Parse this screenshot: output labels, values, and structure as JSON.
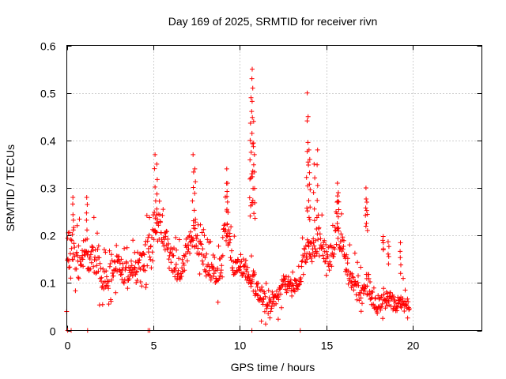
{
  "chart_data": {
    "type": "scatter",
    "title": "Day 169 of 2025, SRMTID for receiver rivn",
    "xlabel": "GPS time / hours",
    "ylabel": "SRMTID / TECUs",
    "xlim": [
      0,
      24
    ],
    "ylim": [
      0,
      0.6
    ],
    "xticks": [
      0,
      5,
      10,
      15,
      20
    ],
    "xtick_labels": [
      "0",
      "5",
      "10",
      "15",
      "20"
    ],
    "yticks": [
      0,
      0.1,
      0.2,
      0.3,
      0.4,
      0.5,
      0.6
    ],
    "ytick_labels": [
      "0",
      "0.1",
      "0.2",
      "0.3",
      "0.4",
      "0.5",
      "0.6"
    ],
    "grid": true,
    "marker": "+",
    "color": "#ff0000",
    "series": [
      {
        "name": "SRMTID",
        "envelope": [
          [
            0.0,
            0.09,
            0.16
          ],
          [
            0.3,
            0.09,
            0.24
          ],
          [
            0.5,
            0.1,
            0.22
          ],
          [
            0.8,
            0.11,
            0.2
          ],
          [
            1.0,
            0.13,
            0.21
          ],
          [
            1.3,
            0.1,
            0.16
          ],
          [
            1.5,
            0.11,
            0.2
          ],
          [
            1.8,
            0.07,
            0.2
          ],
          [
            2.0,
            0.08,
            0.14
          ],
          [
            2.3,
            0.08,
            0.14
          ],
          [
            2.6,
            0.09,
            0.15
          ],
          [
            2.9,
            0.11,
            0.17
          ],
          [
            3.2,
            0.1,
            0.16
          ],
          [
            3.5,
            0.09,
            0.15
          ],
          [
            3.8,
            0.11,
            0.16
          ],
          [
            4.0,
            0.09,
            0.15
          ],
          [
            4.3,
            0.1,
            0.18
          ],
          [
            4.6,
            0.11,
            0.21
          ],
          [
            4.8,
            0.13,
            0.22
          ],
          [
            5.0,
            0.17,
            0.26
          ],
          [
            5.2,
            0.18,
            0.26
          ],
          [
            5.5,
            0.17,
            0.24
          ],
          [
            5.8,
            0.15,
            0.22
          ],
          [
            6.0,
            0.12,
            0.19
          ],
          [
            6.3,
            0.1,
            0.16
          ],
          [
            6.6,
            0.1,
            0.15
          ],
          [
            6.9,
            0.13,
            0.2
          ],
          [
            7.2,
            0.17,
            0.23
          ],
          [
            7.5,
            0.16,
            0.22
          ],
          [
            7.8,
            0.13,
            0.19
          ],
          [
            8.0,
            0.1,
            0.17
          ],
          [
            8.3,
            0.1,
            0.15
          ],
          [
            8.6,
            0.08,
            0.14
          ],
          [
            8.9,
            0.09,
            0.16
          ],
          [
            9.1,
            0.18,
            0.25
          ],
          [
            9.4,
            0.16,
            0.22
          ],
          [
            9.6,
            0.1,
            0.16
          ],
          [
            9.9,
            0.12,
            0.16
          ],
          [
            10.2,
            0.11,
            0.16
          ],
          [
            10.5,
            0.09,
            0.14
          ],
          [
            10.8,
            0.07,
            0.14
          ],
          [
            11.0,
            0.06,
            0.11
          ],
          [
            11.3,
            0.04,
            0.1
          ],
          [
            11.6,
            0.03,
            0.08
          ],
          [
            11.9,
            0.04,
            0.09
          ],
          [
            12.2,
            0.05,
            0.1
          ],
          [
            12.5,
            0.07,
            0.12
          ],
          [
            12.8,
            0.08,
            0.12
          ],
          [
            13.1,
            0.07,
            0.11
          ],
          [
            13.4,
            0.08,
            0.11
          ],
          [
            13.6,
            0.1,
            0.16
          ],
          [
            13.9,
            0.15,
            0.21
          ],
          [
            14.2,
            0.14,
            0.22
          ],
          [
            14.5,
            0.15,
            0.22
          ],
          [
            14.8,
            0.14,
            0.21
          ],
          [
            15.0,
            0.13,
            0.19
          ],
          [
            15.3,
            0.12,
            0.18
          ],
          [
            15.6,
            0.16,
            0.24
          ],
          [
            15.9,
            0.15,
            0.22
          ],
          [
            16.2,
            0.1,
            0.16
          ],
          [
            16.5,
            0.07,
            0.14
          ],
          [
            16.8,
            0.06,
            0.11
          ],
          [
            17.1,
            0.05,
            0.1
          ],
          [
            17.4,
            0.07,
            0.13
          ],
          [
            17.7,
            0.04,
            0.08
          ],
          [
            18.0,
            0.03,
            0.07
          ],
          [
            18.3,
            0.04,
            0.1
          ],
          [
            18.6,
            0.04,
            0.09
          ],
          [
            18.9,
            0.04,
            0.08
          ],
          [
            19.2,
            0.04,
            0.08
          ],
          [
            19.5,
            0.04,
            0.07
          ],
          [
            19.8,
            0.04,
            0.07
          ]
        ],
        "spikes": [
          [
            0.35,
            0.28
          ],
          [
            1.15,
            0.28
          ],
          [
            5.1,
            0.37
          ],
          [
            5.2,
            0.35
          ],
          [
            7.3,
            0.37
          ],
          [
            7.4,
            0.34
          ],
          [
            9.25,
            0.34
          ],
          [
            9.3,
            0.31
          ],
          [
            10.6,
            0.4
          ],
          [
            10.65,
            0.49
          ],
          [
            10.7,
            0.53
          ],
          [
            10.72,
            0.55
          ],
          [
            10.75,
            0.51
          ],
          [
            10.8,
            0.44
          ],
          [
            10.85,
            0.37
          ],
          [
            13.9,
            0.5
          ],
          [
            13.95,
            0.45
          ],
          [
            14.0,
            0.38
          ],
          [
            14.05,
            0.36
          ],
          [
            14.3,
            0.35
          ],
          [
            14.5,
            0.38
          ],
          [
            15.65,
            0.31
          ],
          [
            15.7,
            0.29
          ],
          [
            17.3,
            0.3
          ],
          [
            17.35,
            0.27
          ],
          [
            18.3,
            0.17
          ],
          [
            18.6,
            0.14
          ],
          [
            19.3,
            0.12
          ]
        ],
        "zeros": [
          0.05,
          0.25,
          1.2,
          4.7,
          4.8,
          10.7,
          13.5
        ]
      }
    ]
  }
}
